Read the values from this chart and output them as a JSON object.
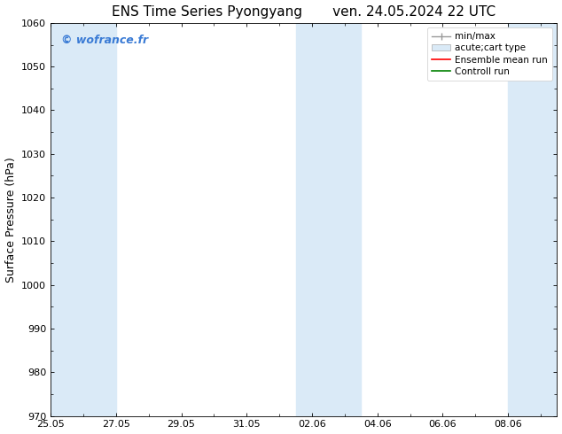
{
  "title": "ENS Time Series Pyongyang       ven. 24.05.2024 22 UTC",
  "ylabel": "Surface Pressure (hPa)",
  "ylim": [
    970,
    1060
  ],
  "yticks": [
    970,
    980,
    990,
    1000,
    1010,
    1020,
    1030,
    1040,
    1050,
    1060
  ],
  "xtick_labels": [
    "25.05",
    "27.05",
    "29.05",
    "31.05",
    "02.06",
    "04.06",
    "06.06",
    "08.06"
  ],
  "xtick_positions_days": [
    0,
    2,
    4,
    6,
    8,
    10,
    12,
    14
  ],
  "xlim_days": [
    0,
    15.5
  ],
  "shaded_bands_days": [
    {
      "start": 0.0,
      "end": 1.0
    },
    {
      "start": 1.0,
      "end": 2.0
    },
    {
      "start": 7.5,
      "end": 8.5
    },
    {
      "start": 8.5,
      "end": 9.5
    },
    {
      "start": 14.0,
      "end": 15.5
    }
  ],
  "watermark": "© wofrance.fr",
  "watermark_color": "#3a7bd5",
  "legend_labels": [
    "min/max",
    "acute;cart type",
    "Ensemble mean run",
    "Controll run"
  ],
  "background_color": "#ffffff",
  "plot_bg_color": "#ffffff",
  "title_fontsize": 11,
  "label_fontsize": 9,
  "tick_fontsize": 8
}
